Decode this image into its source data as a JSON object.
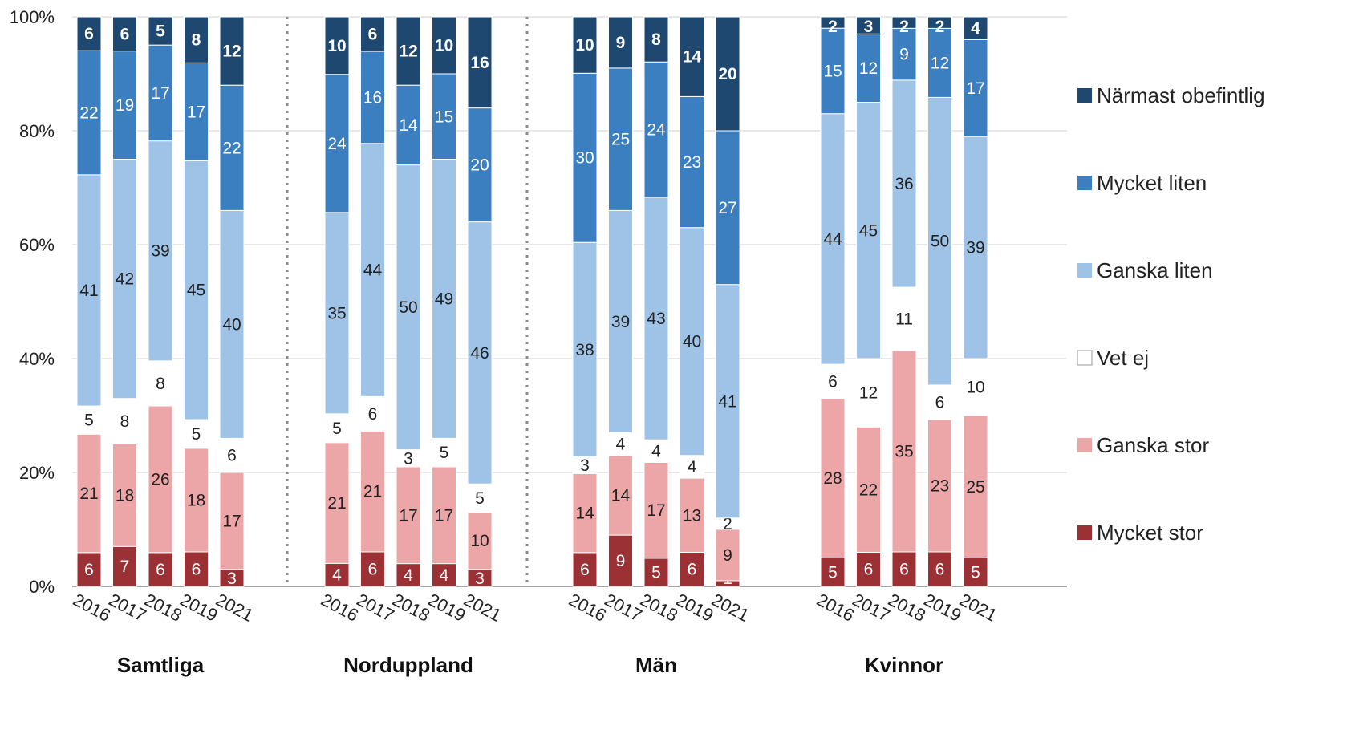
{
  "chart_data": {
    "type": "stacked-bar-100",
    "y_axis": {
      "min": 0,
      "max": 100,
      "ticks": [
        0,
        20,
        40,
        60,
        80,
        100
      ],
      "tick_labels": [
        "0%",
        "20%",
        "40%",
        "60%",
        "80%",
        "100%"
      ],
      "grid": true
    },
    "legend_position": "right",
    "series": [
      {
        "name": "Mycket stor",
        "color": "#9c3135",
        "label_color": "#ffffff"
      },
      {
        "name": "Ganska stor",
        "color": "#eca6a8",
        "label_color": "#222222"
      },
      {
        "name": "Vet ej",
        "color": "#ffffff",
        "label_color": "#222222"
      },
      {
        "name": "Ganska liten",
        "color": "#9fc3e7",
        "label_color": "#222222"
      },
      {
        "name": "Mycket liten",
        "color": "#3c7fc1",
        "label_color": "#ffffff"
      },
      {
        "name": "Närmast obefintlig",
        "color": "#1f4870",
        "label_color": "#ffffff"
      }
    ],
    "legend_order": [
      "Närmast obefintlig",
      "Mycket liten",
      "Ganska liten",
      "Vet ej",
      "Ganska stor",
      "Mycket stor"
    ],
    "groups": [
      {
        "name": "Samtliga",
        "bars": [
          {
            "year": "2016",
            "values": [
              6,
              21,
              5,
              41,
              22,
              6
            ]
          },
          {
            "year": "2017",
            "values": [
              7,
              18,
              8,
              42,
              19,
              6
            ]
          },
          {
            "year": "2018",
            "values": [
              6,
              26,
              8,
              39,
              17,
              5
            ]
          },
          {
            "year": "2019",
            "values": [
              6,
              18,
              5,
              45,
              17,
              8
            ]
          },
          {
            "year": "2021",
            "values": [
              3,
              17,
              6,
              40,
              22,
              12
            ]
          }
        ]
      },
      {
        "name": "Norduppland",
        "bars": [
          {
            "year": "2016",
            "values": [
              4,
              21,
              5,
              35,
              24,
              10
            ]
          },
          {
            "year": "2017",
            "values": [
              6,
              21,
              6,
              44,
              16,
              6
            ]
          },
          {
            "year": "2018",
            "values": [
              4,
              17,
              3,
              50,
              14,
              12
            ]
          },
          {
            "year": "2019",
            "values": [
              4,
              17,
              5,
              49,
              15,
              10
            ]
          },
          {
            "year": "2021",
            "values": [
              3,
              10,
              5,
              46,
              20,
              16
            ]
          }
        ]
      },
      {
        "name": "Män",
        "bars": [
          {
            "year": "2016",
            "values": [
              6,
              14,
              3,
              38,
              30,
              10
            ]
          },
          {
            "year": "2017",
            "values": [
              9,
              14,
              4,
              39,
              25,
              9
            ]
          },
          {
            "year": "2018",
            "values": [
              5,
              17,
              4,
              43,
              24,
              8
            ]
          },
          {
            "year": "2019",
            "values": [
              6,
              13,
              4,
              40,
              23,
              14
            ]
          },
          {
            "year": "2021",
            "values": [
              1,
              9,
              2,
              41,
              27,
              20
            ]
          }
        ]
      },
      {
        "name": "Kvinnor",
        "bars": [
          {
            "year": "2016",
            "values": [
              5,
              28,
              6,
              44,
              15,
              2
            ]
          },
          {
            "year": "2017",
            "values": [
              6,
              22,
              12,
              45,
              12,
              3
            ]
          },
          {
            "year": "2018",
            "values": [
              6,
              35,
              11,
              36,
              9,
              2
            ]
          },
          {
            "year": "2019",
            "values": [
              6,
              23,
              6,
              50,
              12,
              2
            ]
          },
          {
            "year": "2021",
            "values": [
              5,
              25,
              10,
              39,
              17,
              4
            ]
          }
        ]
      }
    ]
  }
}
